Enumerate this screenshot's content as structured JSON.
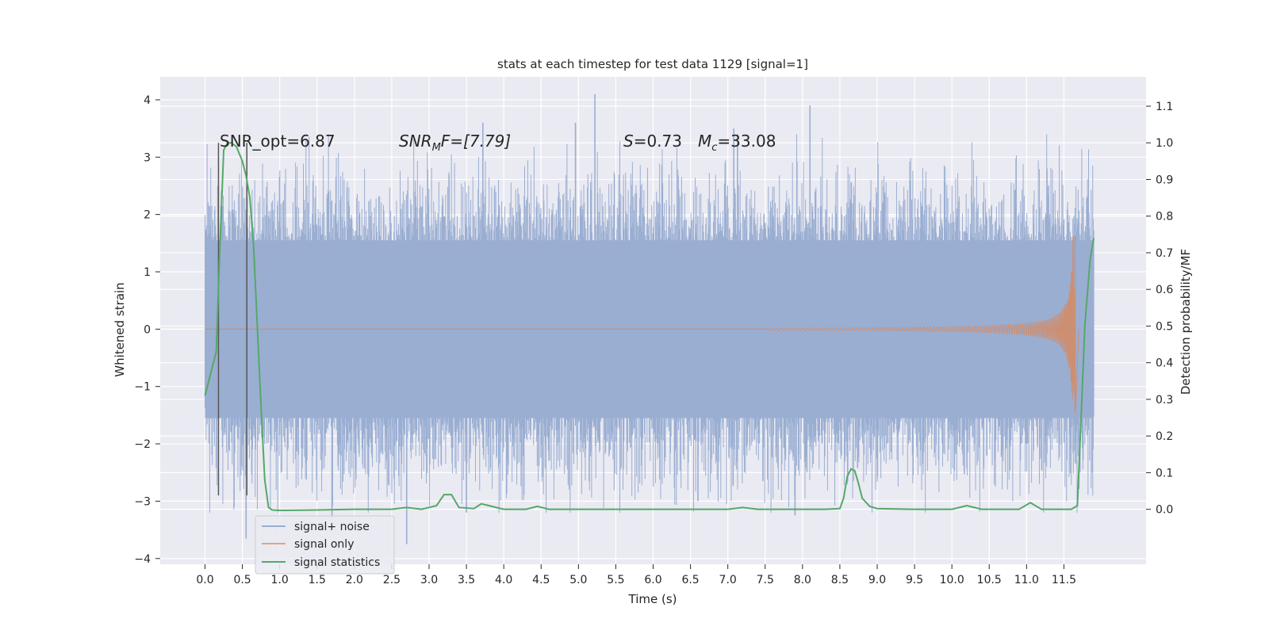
{
  "chart_data": {
    "type": "line",
    "title": "stats at each timestep for test data 1129 [signal=1]",
    "xlabel": "Time (s)",
    "ylabel": "Whitened strain",
    "y2label": "Detection probability/MF",
    "xlim": [
      -0.6,
      12.6
    ],
    "ylim": [
      -4.1,
      4.4
    ],
    "y2lim": [
      -0.15,
      1.18
    ],
    "x_ticks": [
      0.0,
      0.5,
      1.0,
      1.5,
      2.0,
      2.5,
      3.0,
      3.5,
      4.0,
      4.5,
      5.0,
      5.5,
      6.0,
      6.5,
      7.0,
      7.5,
      8.0,
      8.5,
      9.0,
      9.5,
      10.0,
      10.5,
      11.0,
      11.5
    ],
    "x_tick_labels": [
      "0.0",
      "0.5",
      "1.0",
      "1.5",
      "2.0",
      "2.5",
      "3.0",
      "3.5",
      "4.0",
      "4.5",
      "5.0",
      "5.5",
      "6.0",
      "6.5",
      "7.0",
      "7.5",
      "8.0",
      "8.5",
      "9.0",
      "9.5",
      "10.0",
      "10.5",
      "11.0",
      "11.5"
    ],
    "y_ticks": [
      -4,
      -3,
      -2,
      -1,
      0,
      1,
      2,
      3,
      4
    ],
    "y_tick_labels": [
      "−4",
      "−3",
      "−2",
      "−1",
      "0",
      "1",
      "2",
      "3",
      "4"
    ],
    "y2_ticks": [
      0.0,
      0.1,
      0.2,
      0.3,
      0.4,
      0.5,
      0.6,
      0.7,
      0.8,
      0.9,
      1.0,
      1.1
    ],
    "y2_tick_labels": [
      "0.0",
      "0.1",
      "0.2",
      "0.3",
      "0.4",
      "0.5",
      "0.6",
      "0.7",
      "0.8",
      "0.9",
      "1.0",
      "1.1"
    ],
    "grid": true,
    "legend_position": "lower-left",
    "colors": {
      "background": "#eaeaf2",
      "grid": "#ffffff",
      "noise": "#9aaed2",
      "signal": "#dd8452",
      "stats": "#55a868",
      "vline": "#555555"
    },
    "annotations": {
      "snr_opt": "SNR_opt=6.87",
      "snr_mf_label": "SNR",
      "snr_mf_sub": "M",
      "snr_mf_value": "F=[7.79]",
      "s_label": "S",
      "s_value": "=0.73",
      "mc_label": "M",
      "mc_sub": "c",
      "mc_value": "=33.08"
    },
    "vertical_lines_x": [
      0.18,
      0.56
    ],
    "noise_envelope": {
      "t_start": 0.0,
      "t_end": 11.9,
      "dense_band": [
        -1.55,
        1.55
      ],
      "typical_peak": 2.8,
      "max_positive": 4.1,
      "max_negative": -3.75
    },
    "noise_extremes": [
      {
        "t": 5.22,
        "v": 4.1
      },
      {
        "t": 8.1,
        "v": 3.9
      },
      {
        "t": 3.72,
        "v": 3.6
      },
      {
        "t": 4.96,
        "v": 3.6
      },
      {
        "t": 7.08,
        "v": 3.5
      },
      {
        "t": 7.13,
        "v": 3.4
      },
      {
        "t": 0.55,
        "v": -3.65
      },
      {
        "t": 2.7,
        "v": -3.75
      },
      {
        "t": 1.7,
        "v": -3.3
      },
      {
        "t": 3.5,
        "v": -3.2
      },
      {
        "t": 7.9,
        "v": -3.25
      },
      {
        "t": 6.6,
        "v": -3.0
      }
    ],
    "signal_chirp": {
      "t_start": 7.5,
      "t_merger": 11.65,
      "t_end": 11.7,
      "amp_start": 0.02,
      "amp_peak": 1.62,
      "amp_peak_neg": -1.45
    },
    "series": [
      {
        "name": "signal+ noise",
        "type": "noise"
      },
      {
        "name": "signal only",
        "type": "chirp"
      },
      {
        "name": "signal statistics",
        "axis": "right",
        "x": [
          0.0,
          0.15,
          0.2,
          0.25,
          0.3,
          0.35,
          0.42,
          0.5,
          0.55,
          0.6,
          0.65,
          0.7,
          0.75,
          0.8,
          0.85,
          0.9,
          1.0,
          1.5,
          2.0,
          2.5,
          2.7,
          2.9,
          3.1,
          3.2,
          3.3,
          3.4,
          3.6,
          3.7,
          3.8,
          4.0,
          4.3,
          4.45,
          4.6,
          4.8,
          5.0,
          6.0,
          7.0,
          7.2,
          7.4,
          7.6,
          8.0,
          8.3,
          8.5,
          8.55,
          8.6,
          8.65,
          8.7,
          8.75,
          8.8,
          8.9,
          9.0,
          9.5,
          10.0,
          10.2,
          10.4,
          10.9,
          11.05,
          11.2,
          11.3,
          11.6,
          11.68,
          11.72,
          11.78,
          11.85,
          11.9
        ],
        "values": [
          0.31,
          0.43,
          0.72,
          0.98,
          1.0,
          1.0,
          0.99,
          0.95,
          0.91,
          0.85,
          0.72,
          0.5,
          0.28,
          0.08,
          0.005,
          -0.002,
          -0.003,
          -0.002,
          0.0,
          0.0,
          0.005,
          0.0,
          0.01,
          0.04,
          0.04,
          0.005,
          0.002,
          0.015,
          0.01,
          0.0,
          0.0,
          0.008,
          0.0,
          0.0,
          0.0,
          0.0,
          0.0,
          0.005,
          0.0,
          0.0,
          0.0,
          0.0,
          0.002,
          0.03,
          0.09,
          0.11,
          0.105,
          0.07,
          0.03,
          0.008,
          0.002,
          0.0,
          0.0,
          0.01,
          0.0,
          0.0,
          0.018,
          0.0,
          0.0,
          0.0,
          0.01,
          0.2,
          0.5,
          0.68,
          0.74
        ]
      }
    ]
  }
}
